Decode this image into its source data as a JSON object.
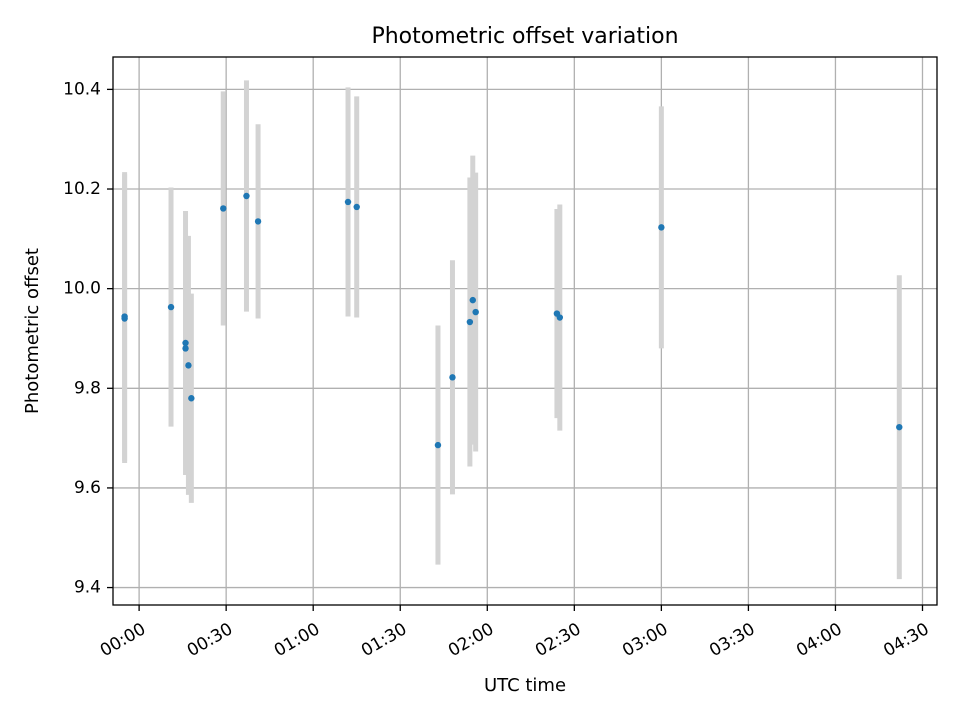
{
  "chart_data": {
    "type": "scatter",
    "title": "Photometric offset variation",
    "xlabel": "UTC time",
    "ylabel": "Photometric offset",
    "x_unit": "HH:MM UTC",
    "xlim": [
      "-00:09",
      "04:35"
    ],
    "ylim": [
      9.365,
      10.465
    ],
    "grid": true,
    "x_ticks": [
      "00:00",
      "00:30",
      "01:00",
      "01:30",
      "02:00",
      "02:30",
      "03:00",
      "03:30",
      "04:00",
      "04:30"
    ],
    "y_ticks": [
      9.4,
      9.6,
      9.8,
      10.0,
      10.2,
      10.4
    ],
    "y_tick_labels": [
      "9.4",
      "9.6",
      "9.8",
      "10.0",
      "10.2",
      "10.4"
    ],
    "point_color": "#1f77b4",
    "errorbar_color": "#d3d3d3",
    "series": [
      {
        "points": [
          {
            "x": "23:55",
            "y": 9.94,
            "err": 0.29
          },
          {
            "x": "23:55",
            "y": 9.944,
            "err": 0.29
          },
          {
            "x": "00:11",
            "y": 9.963,
            "err": 0.24
          },
          {
            "x": "00:16",
            "y": 9.891,
            "err": 0.265
          },
          {
            "x": "00:16",
            "y": 9.88,
            "err": 0.225
          },
          {
            "x": "00:17",
            "y": 9.846,
            "err": 0.26
          },
          {
            "x": "00:18",
            "y": 9.78,
            "err": 0.21
          },
          {
            "x": "00:29",
            "y": 10.161,
            "err": 0.235
          },
          {
            "x": "00:37",
            "y": 10.186,
            "err": 0.232
          },
          {
            "x": "00:41",
            "y": 10.135,
            "err": 0.195
          },
          {
            "x": "01:12",
            "y": 10.174,
            "err": 0.23
          },
          {
            "x": "01:15",
            "y": 10.164,
            "err": 0.222
          },
          {
            "x": "01:43",
            "y": 9.686,
            "err": 0.24
          },
          {
            "x": "01:48",
            "y": 9.822,
            "err": 0.235
          },
          {
            "x": "01:54",
            "y": 9.933,
            "err": 0.29
          },
          {
            "x": "01:55",
            "y": 9.977,
            "err": 0.29
          },
          {
            "x": "01:56",
            "y": 9.953,
            "err": 0.28
          },
          {
            "x": "02:24",
            "y": 9.95,
            "err": 0.21
          },
          {
            "x": "02:25",
            "y": 9.942,
            "err": 0.227
          },
          {
            "x": "03:00",
            "y": 10.123,
            "err": 0.243
          },
          {
            "x": "04:22",
            "y": 9.722,
            "err": 0.305
          }
        ]
      }
    ]
  }
}
